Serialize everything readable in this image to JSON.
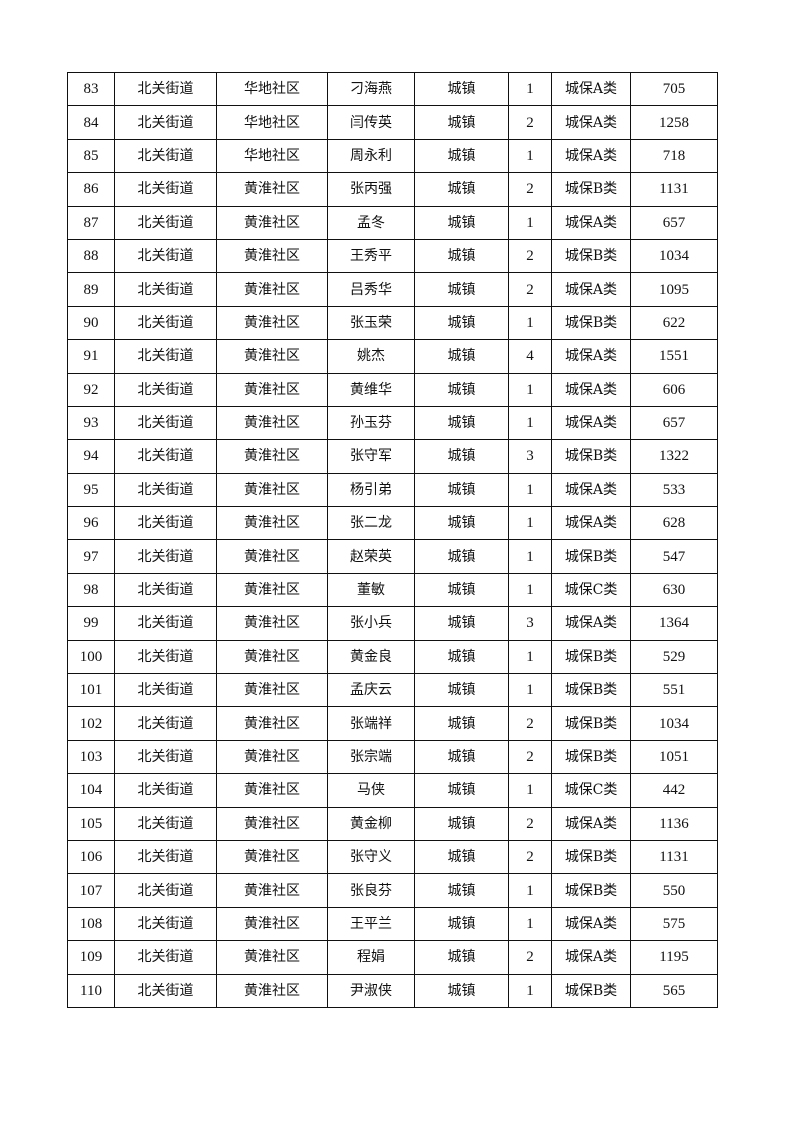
{
  "table": {
    "rows": [
      [
        "83",
        "北关街道",
        "华地社区",
        "刁海燕",
        "城镇",
        "1",
        "城保A类",
        "705"
      ],
      [
        "84",
        "北关街道",
        "华地社区",
        "闫传英",
        "城镇",
        "2",
        "城保A类",
        "1258"
      ],
      [
        "85",
        "北关街道",
        "华地社区",
        "周永利",
        "城镇",
        "1",
        "城保A类",
        "718"
      ],
      [
        "86",
        "北关街道",
        "黄淮社区",
        "张丙强",
        "城镇",
        "2",
        "城保B类",
        "1131"
      ],
      [
        "87",
        "北关街道",
        "黄淮社区",
        "孟冬",
        "城镇",
        "1",
        "城保A类",
        "657"
      ],
      [
        "88",
        "北关街道",
        "黄淮社区",
        "王秀平",
        "城镇",
        "2",
        "城保B类",
        "1034"
      ],
      [
        "89",
        "北关街道",
        "黄淮社区",
        "吕秀华",
        "城镇",
        "2",
        "城保A类",
        "1095"
      ],
      [
        "90",
        "北关街道",
        "黄淮社区",
        "张玉荣",
        "城镇",
        "1",
        "城保B类",
        "622"
      ],
      [
        "91",
        "北关街道",
        "黄淮社区",
        "姚杰",
        "城镇",
        "4",
        "城保A类",
        "1551"
      ],
      [
        "92",
        "北关街道",
        "黄淮社区",
        "黄维华",
        "城镇",
        "1",
        "城保A类",
        "606"
      ],
      [
        "93",
        "北关街道",
        "黄淮社区",
        "孙玉芬",
        "城镇",
        "1",
        "城保A类",
        "657"
      ],
      [
        "94",
        "北关街道",
        "黄淮社区",
        "张守军",
        "城镇",
        "3",
        "城保B类",
        "1322"
      ],
      [
        "95",
        "北关街道",
        "黄淮社区",
        "杨引弟",
        "城镇",
        "1",
        "城保A类",
        "533"
      ],
      [
        "96",
        "北关街道",
        "黄淮社区",
        "张二龙",
        "城镇",
        "1",
        "城保A类",
        "628"
      ],
      [
        "97",
        "北关街道",
        "黄淮社区",
        "赵荣英",
        "城镇",
        "1",
        "城保B类",
        "547"
      ],
      [
        "98",
        "北关街道",
        "黄淮社区",
        "董敏",
        "城镇",
        "1",
        "城保C类",
        "630"
      ],
      [
        "99",
        "北关街道",
        "黄淮社区",
        "张小兵",
        "城镇",
        "3",
        "城保A类",
        "1364"
      ],
      [
        "100",
        "北关街道",
        "黄淮社区",
        "黄金良",
        "城镇",
        "1",
        "城保B类",
        "529"
      ],
      [
        "101",
        "北关街道",
        "黄淮社区",
        "孟庆云",
        "城镇",
        "1",
        "城保B类",
        "551"
      ],
      [
        "102",
        "北关街道",
        "黄淮社区",
        "张端祥",
        "城镇",
        "2",
        "城保B类",
        "1034"
      ],
      [
        "103",
        "北关街道",
        "黄淮社区",
        "张宗端",
        "城镇",
        "2",
        "城保B类",
        "1051"
      ],
      [
        "104",
        "北关街道",
        "黄淮社区",
        "马侠",
        "城镇",
        "1",
        "城保C类",
        "442"
      ],
      [
        "105",
        "北关街道",
        "黄淮社区",
        "黄金柳",
        "城镇",
        "2",
        "城保A类",
        "1136"
      ],
      [
        "106",
        "北关街道",
        "黄淮社区",
        "张守义",
        "城镇",
        "2",
        "城保B类",
        "1131"
      ],
      [
        "107",
        "北关街道",
        "黄淮社区",
        "张良芬",
        "城镇",
        "1",
        "城保B类",
        "550"
      ],
      [
        "108",
        "北关街道",
        "黄淮社区",
        "王平兰",
        "城镇",
        "1",
        "城保A类",
        "575"
      ],
      [
        "109",
        "北关街道",
        "黄淮社区",
        "程娟",
        "城镇",
        "2",
        "城保A类",
        "1195"
      ],
      [
        "110",
        "北关街道",
        "黄淮社区",
        "尹淑侠",
        "城镇",
        "1",
        "城保B类",
        "565"
      ]
    ]
  }
}
